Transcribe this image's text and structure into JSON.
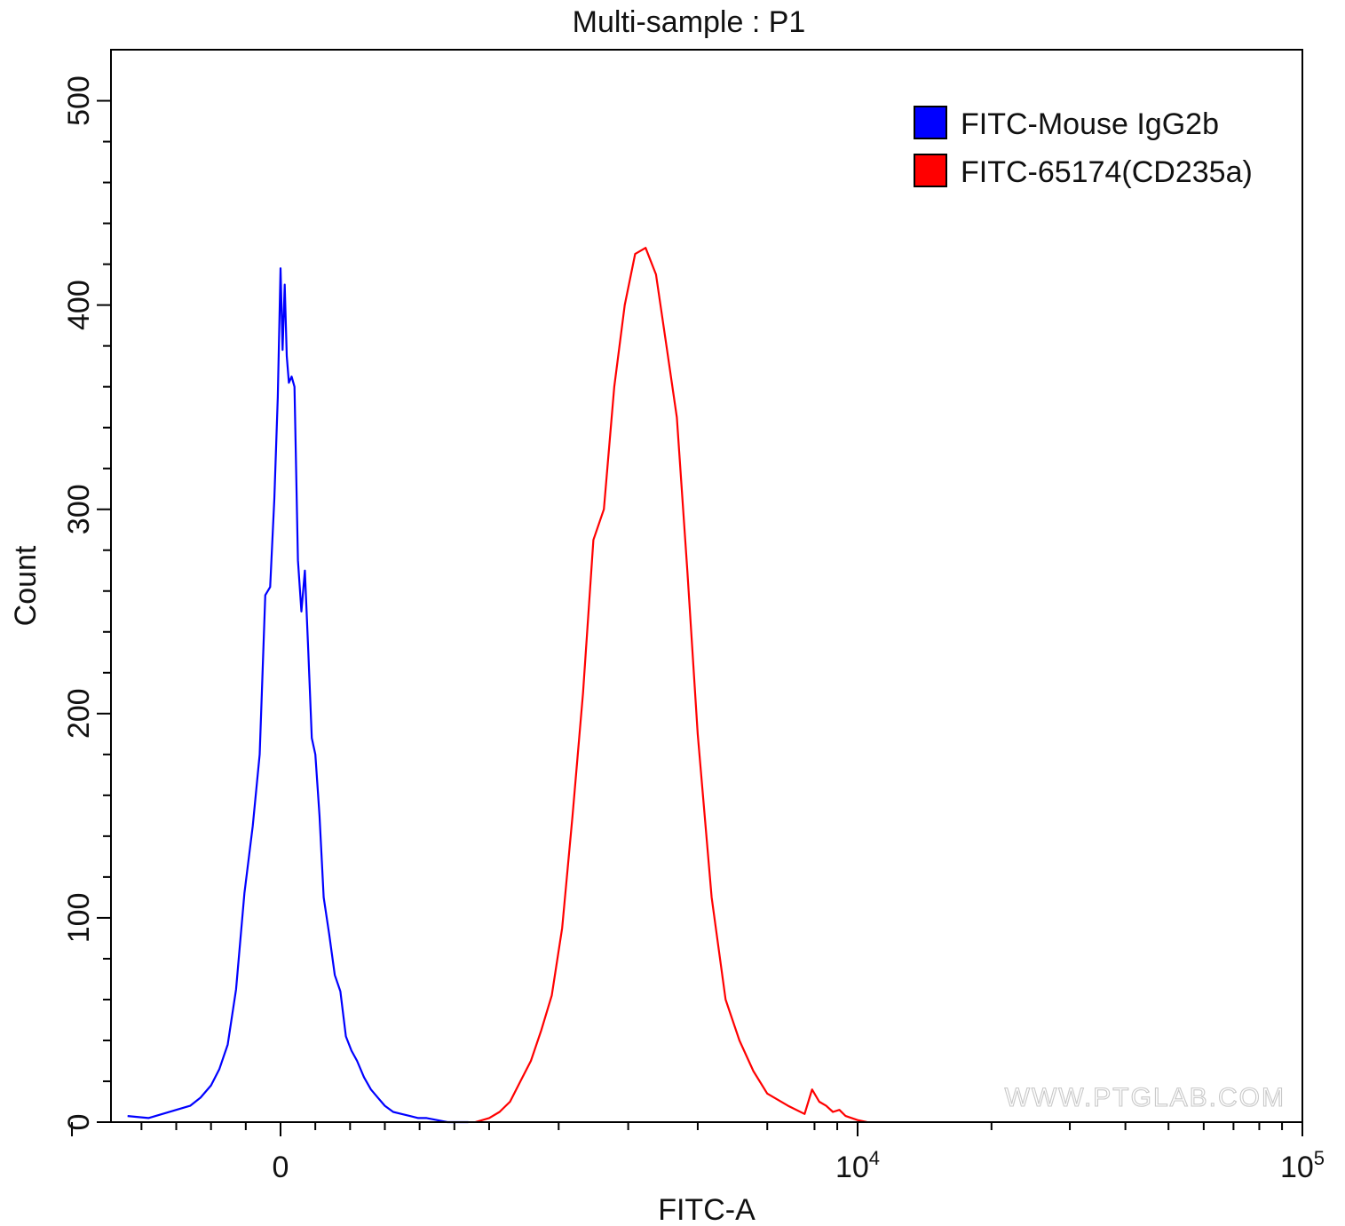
{
  "chart_data": {
    "type": "line",
    "title": "Multi-sample : P1",
    "xlabel": "FITC-A",
    "ylabel": "Count",
    "x_scale": "biexponential",
    "x_ticks": [
      {
        "value": 0,
        "label": "0"
      },
      {
        "value": 10000,
        "label": "10",
        "sup": "4"
      },
      {
        "value": 100000,
        "label": "10",
        "sup": "5"
      }
    ],
    "ylim": [
      0,
      525
    ],
    "y_ticks": [
      0,
      100,
      200,
      300,
      400,
      500
    ],
    "grid": false,
    "legend_position": "top-right",
    "watermark": "WWW.PTGLAB.COM",
    "series": [
      {
        "name": "FITC-Mouse IgG2b",
        "color": "#0000ff",
        "x": [
          -2200,
          -1900,
          -1700,
          -1500,
          -1300,
          -1150,
          -1000,
          -880,
          -760,
          -640,
          -520,
          -400,
          -300,
          -220,
          -150,
          -90,
          -40,
          0,
          30,
          60,
          90,
          120,
          160,
          200,
          250,
          300,
          350,
          400,
          450,
          500,
          560,
          620,
          700,
          780,
          860,
          940,
          1020,
          1100,
          1200,
          1300,
          1400,
          1500,
          1620,
          1740,
          1860,
          1980,
          2100,
          2250,
          2400,
          2550,
          2700
        ],
        "y": [
          3,
          2,
          4,
          6,
          8,
          12,
          18,
          26,
          38,
          65,
          112,
          145,
          180,
          258,
          262,
          305,
          355,
          418,
          378,
          410,
          375,
          362,
          365,
          360,
          275,
          250,
          270,
          230,
          188,
          180,
          150,
          110,
          92,
          72,
          64,
          42,
          35,
          30,
          22,
          16,
          12,
          8,
          5,
          4,
          3,
          2,
          2,
          1,
          0,
          0,
          0
        ]
      },
      {
        "name": "FITC-65174(CD235a)",
        "color": "#ff0000",
        "x": [
          2800,
          3000,
          3150,
          3300,
          3450,
          3600,
          3750,
          3900,
          4050,
          4200,
          4350,
          4500,
          4650,
          4800,
          4950,
          5100,
          5250,
          5400,
          5550,
          5700,
          5850,
          6000,
          6200,
          6400,
          6600,
          6800,
          7000,
          7300,
          7600,
          7900,
          8200,
          8500,
          8800,
          9100,
          9400,
          9700,
          10000,
          10500
        ],
        "y": [
          0,
          2,
          5,
          10,
          20,
          30,
          45,
          62,
          95,
          150,
          210,
          285,
          300,
          360,
          400,
          425,
          428,
          415,
          380,
          345,
          270,
          190,
          110,
          60,
          40,
          25,
          14,
          8,
          4,
          16,
          10,
          8,
          5,
          6,
          3,
          2,
          1,
          0
        ]
      }
    ]
  }
}
